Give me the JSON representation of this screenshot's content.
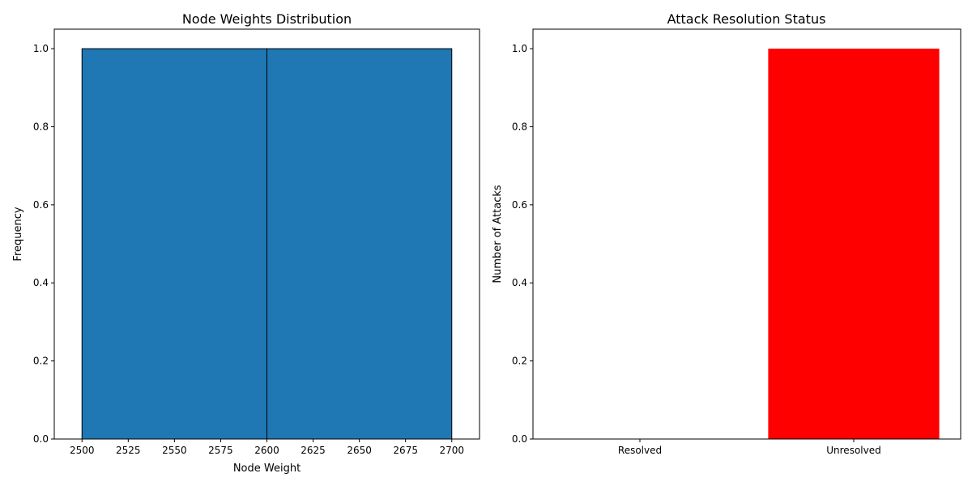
{
  "chart_data": [
    {
      "type": "bar",
      "title": "Node Weights Distribution",
      "xlabel": "Node Weight",
      "ylabel": "Frequency",
      "bins": [
        {
          "start": 2500,
          "end": 2600,
          "value": 1
        },
        {
          "start": 2600,
          "end": 2700,
          "value": 1
        }
      ],
      "xlim": [
        2485,
        2715
      ],
      "ylim": [
        0,
        1.05
      ],
      "xticks": [
        2500,
        2525,
        2550,
        2575,
        2600,
        2625,
        2650,
        2675,
        2700
      ],
      "yticks": [
        "0.0",
        "0.2",
        "0.4",
        "0.6",
        "0.8",
        "1.0"
      ],
      "bar_color": "#1f77b4",
      "edge_color": "#000000",
      "grid": false
    },
    {
      "type": "bar",
      "title": "Attack Resolution Status",
      "xlabel": "",
      "ylabel": "Number of Attacks",
      "categories": [
        "Resolved",
        "Unresolved"
      ],
      "values": [
        0,
        1
      ],
      "colors": [
        "#008000",
        "#ff0000"
      ],
      "ylim": [
        0,
        1.05
      ],
      "yticks": [
        "0.0",
        "0.2",
        "0.4",
        "0.6",
        "0.8",
        "1.0"
      ],
      "grid": false
    }
  ]
}
